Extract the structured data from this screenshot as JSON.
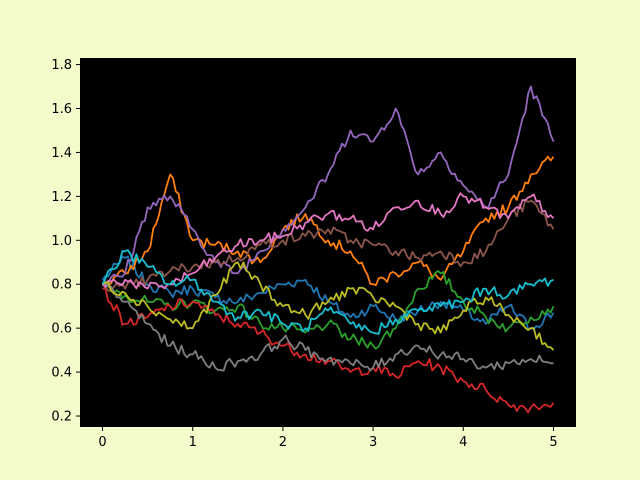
{
  "chart_data": {
    "type": "line",
    "title": "",
    "xlabel": "",
    "ylabel": "",
    "xlim": [
      -0.25,
      5.25
    ],
    "ylim": [
      0.15,
      1.83
    ],
    "x_ticks": [
      0,
      1,
      2,
      3,
      4,
      5
    ],
    "x_tick_labels": [
      "0",
      "1",
      "2",
      "3",
      "4",
      "5"
    ],
    "y_ticks": [
      0.2,
      0.4,
      0.6,
      0.8,
      1.0,
      1.2,
      1.4,
      1.6,
      1.8
    ],
    "y_tick_labels": [
      "0.2",
      "0.4",
      "0.6",
      "0.8",
      "1.0",
      "1.2",
      "1.4",
      "1.6",
      "1.8"
    ],
    "grid": false,
    "legend": "none",
    "colors": {
      "figure_background": "#f3fbcb",
      "plot_background": "#000000"
    },
    "series": [
      {
        "color": "#1f77b4",
        "x": [
          0,
          0.25,
          0.5,
          0.75,
          1,
          1.25,
          1.5,
          1.75,
          2,
          2.25,
          2.5,
          2.75,
          3,
          3.25,
          3.5,
          3.75,
          4,
          4.25,
          4.5,
          4.75,
          5
        ],
        "y": [
          0.82,
          0.92,
          0.8,
          0.76,
          0.78,
          0.74,
          0.72,
          0.76,
          0.8,
          0.82,
          0.72,
          0.65,
          0.7,
          0.64,
          0.68,
          0.72,
          0.68,
          0.62,
          0.7,
          0.6,
          0.67
        ]
      },
      {
        "color": "#ff7f0e",
        "x": [
          0,
          0.25,
          0.5,
          0.75,
          1,
          1.25,
          1.5,
          1.75,
          2,
          2.25,
          2.5,
          2.75,
          3,
          3.25,
          3.5,
          3.75,
          4,
          4.25,
          4.5,
          4.75,
          5
        ],
        "y": [
          0.8,
          0.85,
          0.95,
          1.3,
          1.0,
          0.98,
          0.95,
          0.9,
          1.05,
          1.12,
          1.0,
          0.95,
          0.8,
          0.85,
          0.9,
          0.82,
          0.95,
          1.1,
          1.15,
          1.3,
          1.38
        ]
      },
      {
        "color": "#2ca02c",
        "x": [
          0,
          0.25,
          0.5,
          0.75,
          1,
          1.25,
          1.5,
          1.75,
          2,
          2.25,
          2.5,
          2.75,
          3,
          3.25,
          3.5,
          3.75,
          4,
          4.25,
          4.5,
          4.75,
          5
        ],
        "y": [
          0.8,
          0.75,
          0.72,
          0.7,
          0.72,
          0.68,
          0.7,
          0.62,
          0.6,
          0.58,
          0.62,
          0.55,
          0.52,
          0.6,
          0.78,
          0.85,
          0.72,
          0.65,
          0.6,
          0.65,
          0.7
        ]
      },
      {
        "color": "#d62728",
        "x": [
          0,
          0.25,
          0.5,
          0.75,
          1,
          1.25,
          1.5,
          1.75,
          2,
          2.25,
          2.5,
          2.75,
          3,
          3.25,
          3.5,
          3.75,
          4,
          4.25,
          4.5,
          4.75,
          5
        ],
        "y": [
          0.78,
          0.62,
          0.65,
          0.7,
          0.72,
          0.66,
          0.62,
          0.58,
          0.52,
          0.48,
          0.45,
          0.4,
          0.42,
          0.38,
          0.45,
          0.42,
          0.36,
          0.32,
          0.25,
          0.24,
          0.26
        ]
      },
      {
        "color": "#9467bd",
        "x": [
          0,
          0.25,
          0.5,
          0.75,
          1,
          1.25,
          1.5,
          1.75,
          2,
          2.25,
          2.5,
          2.75,
          3,
          3.25,
          3.5,
          3.75,
          4,
          4.25,
          4.5,
          4.75,
          5
        ],
        "y": [
          0.8,
          0.85,
          1.15,
          1.2,
          1.05,
          0.9,
          0.85,
          0.95,
          1.05,
          1.15,
          1.3,
          1.5,
          1.45,
          1.6,
          1.3,
          1.4,
          1.25,
          1.15,
          1.3,
          1.7,
          1.45
        ]
      },
      {
        "color": "#8c564b",
        "x": [
          0,
          0.25,
          0.5,
          0.75,
          1,
          1.25,
          1.5,
          1.75,
          2,
          2.25,
          2.5,
          2.75,
          3,
          3.25,
          3.5,
          3.75,
          4,
          4.25,
          4.5,
          4.75,
          5
        ],
        "y": [
          0.8,
          0.78,
          0.82,
          0.86,
          0.88,
          0.9,
          0.92,
          0.98,
          1.0,
          1.02,
          1.05,
          1.0,
          0.98,
          0.95,
          0.92,
          0.95,
          0.9,
          0.95,
          1.1,
          1.18,
          1.05
        ]
      },
      {
        "color": "#e377c2",
        "x": [
          0,
          0.25,
          0.5,
          0.75,
          1,
          1.25,
          1.5,
          1.75,
          2,
          2.25,
          2.5,
          2.75,
          3,
          3.25,
          3.5,
          3.75,
          4,
          4.25,
          4.5,
          4.75,
          5
        ],
        "y": [
          0.8,
          0.82,
          0.78,
          0.8,
          0.85,
          0.92,
          0.98,
          1.0,
          1.02,
          1.08,
          1.12,
          1.1,
          1.05,
          1.15,
          1.18,
          1.12,
          1.2,
          1.15,
          1.1,
          1.2,
          1.1
        ]
      },
      {
        "color": "#7f7f7f",
        "x": [
          0,
          0.25,
          0.5,
          0.75,
          1,
          1.25,
          1.5,
          1.75,
          2,
          2.25,
          2.5,
          2.75,
          3,
          3.25,
          3.5,
          3.75,
          4,
          4.25,
          4.5,
          4.75,
          5
        ],
        "y": [
          0.8,
          0.72,
          0.62,
          0.52,
          0.48,
          0.42,
          0.45,
          0.48,
          0.55,
          0.5,
          0.46,
          0.44,
          0.42,
          0.48,
          0.52,
          0.48,
          0.46,
          0.42,
          0.44,
          0.46,
          0.44
        ]
      },
      {
        "color": "#bcbd22",
        "x": [
          0,
          0.25,
          0.5,
          0.75,
          1,
          1.25,
          1.5,
          1.75,
          2,
          2.25,
          2.5,
          2.75,
          3,
          3.25,
          3.5,
          3.75,
          4,
          4.25,
          4.5,
          4.75,
          5
        ],
        "y": [
          0.8,
          0.76,
          0.7,
          0.64,
          0.6,
          0.75,
          0.9,
          0.8,
          0.7,
          0.66,
          0.72,
          0.78,
          0.74,
          0.7,
          0.62,
          0.58,
          0.68,
          0.74,
          0.66,
          0.6,
          0.5
        ]
      },
      {
        "color": "#17becf",
        "x": [
          0,
          0.25,
          0.5,
          0.75,
          1,
          1.25,
          1.5,
          1.75,
          2,
          2.25,
          2.5,
          2.75,
          3,
          3.25,
          3.5,
          3.75,
          4,
          4.25,
          4.5,
          4.75,
          5
        ],
        "y": [
          0.8,
          0.95,
          0.88,
          0.8,
          0.82,
          0.72,
          0.65,
          0.68,
          0.62,
          0.6,
          0.68,
          0.62,
          0.58,
          0.64,
          0.68,
          0.7,
          0.72,
          0.78,
          0.75,
          0.8,
          0.82
        ]
      }
    ]
  }
}
